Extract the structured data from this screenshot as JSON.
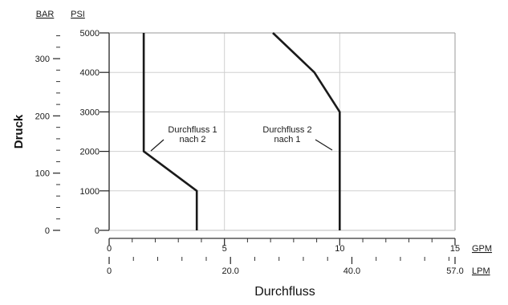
{
  "chart_data": {
    "type": "line",
    "xlabel": "Durchfluss",
    "ylabel": "Druck",
    "x_primary": {
      "unit": "GPM",
      "range": [
        0,
        15
      ],
      "major_ticks": [
        0,
        5,
        10,
        15
      ],
      "tick_labels": [
        "0",
        "5",
        "10",
        "15"
      ]
    },
    "x_secondary": {
      "unit": "LPM",
      "range": [
        0,
        57.0
      ],
      "major_ticks": [
        0,
        20.0,
        40.0,
        57.0
      ],
      "tick_labels": [
        "0",
        "20.0",
        "40.0",
        "57.0"
      ]
    },
    "y_primary": {
      "unit": "PSI",
      "range": [
        0,
        5000
      ],
      "major_ticks": [
        0,
        1000,
        2000,
        3000,
        4000,
        5000
      ],
      "tick_labels": [
        "0",
        "1000",
        "2000",
        "3000",
        "4000",
        "5000"
      ]
    },
    "y_secondary": {
      "unit": "BAR",
      "range": [
        0,
        345
      ],
      "major_ticks": [
        0,
        100,
        200,
        300
      ],
      "tick_labels": [
        "0",
        "100",
        "200",
        "300"
      ]
    },
    "grid": true,
    "series": [
      {
        "name": "Durchfluss 1 nach 2",
        "points": [
          [
            3.8,
            0
          ],
          [
            3.8,
            1000
          ],
          [
            1.5,
            2000
          ],
          [
            1.5,
            5000
          ]
        ]
      },
      {
        "name": "Durchfluss 2 nach 1",
        "points": [
          [
            10,
            0
          ],
          [
            10,
            3000
          ],
          [
            8.9,
            4000
          ],
          [
            7.1,
            5000
          ]
        ]
      }
    ],
    "annotations": [
      {
        "lines": [
          "Durchfluss 1",
          "nach 2"
        ]
      },
      {
        "lines": [
          "Durchfluss 2",
          "nach 1"
        ]
      }
    ]
  }
}
